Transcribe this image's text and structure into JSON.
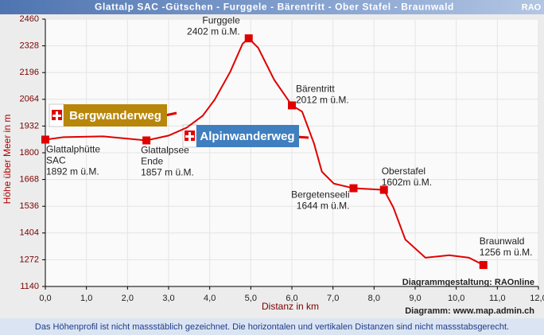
{
  "header": {
    "title": "Glattalp SAC -Gütschen - Furggele - Bärentritt - Ober Stafel - Braunwald",
    "logo": "RAO"
  },
  "chart_data": {
    "type": "line",
    "x_label": "Distanz in km",
    "y_label": "Höhe über Meer in m",
    "xlim": [
      0,
      12
    ],
    "ylim": [
      1140,
      2460
    ],
    "xticks": [
      {
        "value": 0,
        "label": "0,0"
      },
      {
        "value": 1,
        "label": "1,0"
      },
      {
        "value": 2,
        "label": "2,0"
      },
      {
        "value": 3,
        "label": "3,0"
      },
      {
        "value": 4,
        "label": "4,0"
      },
      {
        "value": 5,
        "label": "5,0"
      },
      {
        "value": 6,
        "label": "6,0"
      },
      {
        "value": 7,
        "label": "7,0"
      },
      {
        "value": 8,
        "label": "8,0"
      },
      {
        "value": 9,
        "label": "9,0"
      },
      {
        "value": 10,
        "label": "10,0"
      },
      {
        "value": 11,
        "label": "11,0"
      },
      {
        "value": 12,
        "label": "12,0"
      }
    ],
    "yticks": [
      1140,
      1272,
      1404,
      1536,
      1668,
      1800,
      1932,
      2064,
      2196,
      2328,
      2460
    ],
    "grid": true,
    "color": "#e00000",
    "x": [
      0,
      0.44,
      1.41,
      2.46,
      3.0,
      3.44,
      3.83,
      4.12,
      4.5,
      4.8,
      4.95,
      5.18,
      5.57,
      6.0,
      6.25,
      6.54,
      6.73,
      7.02,
      7.5,
      8.24,
      8.47,
      8.76,
      9.25,
      9.83,
      10.31,
      10.66
    ],
    "values": [
      1865,
      1877,
      1881,
      1861,
      1885,
      1924,
      1983,
      2062,
      2200,
      2338,
      2365,
      2318,
      2160,
      2034,
      2003,
      1845,
      1707,
      1648,
      1625,
      1617,
      1530,
      1372,
      1282,
      1294,
      1282,
      1246
    ],
    "waypoints": [
      {
        "x": 0,
        "y": 1865,
        "label": [
          "Glattalphütte",
          "SAC",
          "1892 m ü.M."
        ]
      },
      {
        "x": 2.46,
        "y": 1861,
        "label": [
          "Glattalpsee",
          "Ende",
          "1857 m ü.M."
        ]
      },
      {
        "x": 4.95,
        "y": 2365,
        "label": [
          "Furggele",
          "2402 m ü.M."
        ]
      },
      {
        "x": 6.0,
        "y": 2034,
        "label": [
          "Bärentritt",
          "2012 m ü.M."
        ]
      },
      {
        "x": 7.5,
        "y": 1625,
        "label": [
          "Bergetenseeli",
          "1644 m ü.M."
        ]
      },
      {
        "x": 8.24,
        "y": 1617,
        "label": [
          "Oberstafel",
          "1602m ü.M."
        ]
      },
      {
        "x": 10.66,
        "y": 1246,
        "label": [
          "Braunwald",
          "1256 m ü.M."
        ]
      }
    ],
    "signs": [
      {
        "label": "Bergwanderweg",
        "color": "#b8860b"
      },
      {
        "label": "Alpinwanderweg",
        "color": "#3f7fbf"
      }
    ],
    "credits": [
      "Diagrammgestaltung: RAOnline",
      "Diagramm: www.map.admin.ch"
    ]
  },
  "footer": {
    "note": "Das Höhenprofil ist nicht massstäblich gezeichnet. Die horizontalen und vertikalen Distanzen sind nicht massstabsgerecht."
  }
}
